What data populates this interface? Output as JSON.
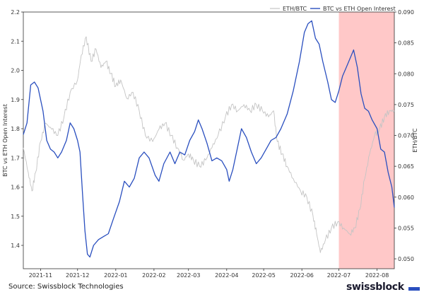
{
  "chart_data": {
    "type": "line",
    "xlabel": "",
    "x_ticks": [
      "2021-11",
      "2021-12",
      "2022-01",
      "2022-02",
      "2022-03",
      "2022-04",
      "2022-05",
      "2022-06",
      "2022-07",
      "2022-08"
    ],
    "x_range": [
      "2021-10-18",
      "2022-08-15"
    ],
    "highlight_range": [
      "2022-07-01",
      "2022-08-15"
    ],
    "highlight_color": "#ffc8c8",
    "left_axis": {
      "label": "BTC vs ETH Open Interest",
      "range": [
        1.32,
        2.2
      ],
      "ticks": [
        "1.4",
        "1.5",
        "1.6",
        "1.7",
        "1.8",
        "1.9",
        "2.0",
        "2.1",
        "2.2"
      ]
    },
    "right_axis": {
      "label": "ETH/BTC",
      "range": [
        0.0484,
        0.09
      ],
      "ticks": [
        "0.050",
        "0.055",
        "0.060",
        "0.065",
        "0.070",
        "0.075",
        "0.080",
        "0.085",
        "0.090"
      ]
    },
    "series": [
      {
        "name": "ETH/BTC",
        "axis": "right",
        "color": "#c4c4c4",
        "points": [
          [
            "2021-10-18",
            0.068
          ],
          [
            "2021-10-22",
            0.064
          ],
          [
            "2021-10-25",
            0.061
          ],
          [
            "2021-10-28",
            0.064
          ],
          [
            "2021-11-01",
            0.069
          ],
          [
            "2021-11-05",
            0.072
          ],
          [
            "2021-11-10",
            0.071
          ],
          [
            "2021-11-15",
            0.07
          ],
          [
            "2021-11-20",
            0.073
          ],
          [
            "2021-11-25",
            0.077
          ],
          [
            "2021-12-01",
            0.079
          ],
          [
            "2021-12-04",
            0.083
          ],
          [
            "2021-12-08",
            0.086
          ],
          [
            "2021-12-12",
            0.082
          ],
          [
            "2021-12-16",
            0.084
          ],
          [
            "2021-12-20",
            0.081
          ],
          [
            "2021-12-24",
            0.082
          ],
          [
            "2021-12-28",
            0.08
          ],
          [
            "2022-01-01",
            0.078
          ],
          [
            "2022-01-05",
            0.079
          ],
          [
            "2022-01-10",
            0.076
          ],
          [
            "2022-01-15",
            0.077
          ],
          [
            "2022-01-20",
            0.074
          ],
          [
            "2022-01-25",
            0.07
          ],
          [
            "2022-01-31",
            0.069
          ],
          [
            "2022-02-05",
            0.071
          ],
          [
            "2022-02-10",
            0.072
          ],
          [
            "2022-02-15",
            0.07
          ],
          [
            "2022-02-20",
            0.068
          ],
          [
            "2022-02-25",
            0.066
          ],
          [
            "2022-03-01",
            0.067
          ],
          [
            "2022-03-05",
            0.066
          ],
          [
            "2022-03-10",
            0.065
          ],
          [
            "2022-03-15",
            0.066
          ],
          [
            "2022-03-20",
            0.068
          ],
          [
            "2022-03-25",
            0.07
          ],
          [
            "2022-03-31",
            0.073
          ],
          [
            "2022-04-05",
            0.075
          ],
          [
            "2022-04-10",
            0.074
          ],
          [
            "2022-04-15",
            0.075
          ],
          [
            "2022-04-20",
            0.074
          ],
          [
            "2022-04-25",
            0.075
          ],
          [
            "2022-04-30",
            0.074
          ],
          [
            "2022-05-05",
            0.073
          ],
          [
            "2022-05-09",
            0.074
          ],
          [
            "2022-05-12",
            0.069
          ],
          [
            "2022-05-16",
            0.067
          ],
          [
            "2022-05-20",
            0.065
          ],
          [
            "2022-05-25",
            0.063
          ],
          [
            "2022-05-31",
            0.061
          ],
          [
            "2022-06-05",
            0.06
          ],
          [
            "2022-06-10",
            0.057
          ],
          [
            "2022-06-13",
            0.054
          ],
          [
            "2022-06-16",
            0.051
          ],
          [
            "2022-06-20",
            0.053
          ],
          [
            "2022-06-25",
            0.055
          ],
          [
            "2022-06-30",
            0.056
          ],
          [
            "2022-07-05",
            0.055
          ],
          [
            "2022-07-10",
            0.054
          ],
          [
            "2022-07-14",
            0.055
          ],
          [
            "2022-07-18",
            0.058
          ],
          [
            "2022-07-22",
            0.063
          ],
          [
            "2022-07-26",
            0.067
          ],
          [
            "2022-07-30",
            0.07
          ],
          [
            "2022-08-03",
            0.071
          ],
          [
            "2022-08-07",
            0.073
          ],
          [
            "2022-08-11",
            0.074
          ],
          [
            "2022-08-15",
            0.074
          ]
        ]
      },
      {
        "name": "BTC vs ETH Open Interest",
        "axis": "left",
        "color": "#2a4fbf",
        "points": [
          [
            "2021-10-18",
            1.78
          ],
          [
            "2021-10-21",
            1.82
          ],
          [
            "2021-10-24",
            1.95
          ],
          [
            "2021-10-27",
            1.96
          ],
          [
            "2021-10-30",
            1.94
          ],
          [
            "2021-11-03",
            1.86
          ],
          [
            "2021-11-06",
            1.76
          ],
          [
            "2021-11-09",
            1.73
          ],
          [
            "2021-11-12",
            1.72
          ],
          [
            "2021-11-15",
            1.7
          ],
          [
            "2021-11-18",
            1.72
          ],
          [
            "2021-11-22",
            1.76
          ],
          [
            "2021-11-25",
            1.82
          ],
          [
            "2021-11-28",
            1.8
          ],
          [
            "2021-12-01",
            1.76
          ],
          [
            "2021-12-03",
            1.72
          ],
          [
            "2021-12-05",
            1.58
          ],
          [
            "2021-12-07",
            1.45
          ],
          [
            "2021-12-09",
            1.37
          ],
          [
            "2021-12-11",
            1.36
          ],
          [
            "2021-12-14",
            1.4
          ],
          [
            "2021-12-18",
            1.42
          ],
          [
            "2021-12-22",
            1.43
          ],
          [
            "2021-12-26",
            1.44
          ],
          [
            "2021-12-30",
            1.49
          ],
          [
            "2022-01-04",
            1.55
          ],
          [
            "2022-01-08",
            1.62
          ],
          [
            "2022-01-12",
            1.6
          ],
          [
            "2022-01-16",
            1.63
          ],
          [
            "2022-01-20",
            1.7
          ],
          [
            "2022-01-24",
            1.72
          ],
          [
            "2022-01-28",
            1.7
          ],
          [
            "2022-02-02",
            1.64
          ],
          [
            "2022-02-05",
            1.62
          ],
          [
            "2022-02-09",
            1.68
          ],
          [
            "2022-02-14",
            1.72
          ],
          [
            "2022-02-18",
            1.68
          ],
          [
            "2022-02-22",
            1.72
          ],
          [
            "2022-02-26",
            1.71
          ],
          [
            "2022-03-02",
            1.76
          ],
          [
            "2022-03-06",
            1.79
          ],
          [
            "2022-03-09",
            1.83
          ],
          [
            "2022-03-12",
            1.8
          ],
          [
            "2022-03-16",
            1.75
          ],
          [
            "2022-03-20",
            1.69
          ],
          [
            "2022-03-24",
            1.7
          ],
          [
            "2022-03-28",
            1.69
          ],
          [
            "2022-04-01",
            1.66
          ],
          [
            "2022-04-03",
            1.62
          ],
          [
            "2022-04-06",
            1.66
          ],
          [
            "2022-04-10",
            1.74
          ],
          [
            "2022-04-13",
            1.8
          ],
          [
            "2022-04-17",
            1.77
          ],
          [
            "2022-04-21",
            1.72
          ],
          [
            "2022-04-25",
            1.68
          ],
          [
            "2022-04-29",
            1.7
          ],
          [
            "2022-05-03",
            1.73
          ],
          [
            "2022-05-07",
            1.76
          ],
          [
            "2022-05-11",
            1.77
          ],
          [
            "2022-05-15",
            1.8
          ],
          [
            "2022-05-20",
            1.85
          ],
          [
            "2022-05-25",
            1.93
          ],
          [
            "2022-05-30",
            2.03
          ],
          [
            "2022-06-03",
            2.13
          ],
          [
            "2022-06-06",
            2.16
          ],
          [
            "2022-06-09",
            2.17
          ],
          [
            "2022-06-12",
            2.11
          ],
          [
            "2022-06-15",
            2.09
          ],
          [
            "2022-06-18",
            2.03
          ],
          [
            "2022-06-22",
            1.96
          ],
          [
            "2022-06-25",
            1.9
          ],
          [
            "2022-06-28",
            1.89
          ],
          [
            "2022-07-01",
            1.93
          ],
          [
            "2022-07-04",
            1.98
          ],
          [
            "2022-07-07",
            2.01
          ],
          [
            "2022-07-10",
            2.04
          ],
          [
            "2022-07-13",
            2.07
          ],
          [
            "2022-07-16",
            2.01
          ],
          [
            "2022-07-19",
            1.92
          ],
          [
            "2022-07-22",
            1.87
          ],
          [
            "2022-07-25",
            1.86
          ],
          [
            "2022-07-28",
            1.83
          ],
          [
            "2022-08-01",
            1.8
          ],
          [
            "2022-08-04",
            1.73
          ],
          [
            "2022-08-07",
            1.72
          ],
          [
            "2022-08-10",
            1.65
          ],
          [
            "2022-08-13",
            1.6
          ],
          [
            "2022-08-15",
            1.53
          ]
        ]
      }
    ],
    "legend": {
      "placement": "top-right",
      "entries": [
        "ETH/BTC",
        "BTC vs ETH Open Interest"
      ]
    }
  },
  "source": "Source: Swissblock Technologies",
  "brand": "swissblock",
  "brand_color": "#2a4fbf"
}
